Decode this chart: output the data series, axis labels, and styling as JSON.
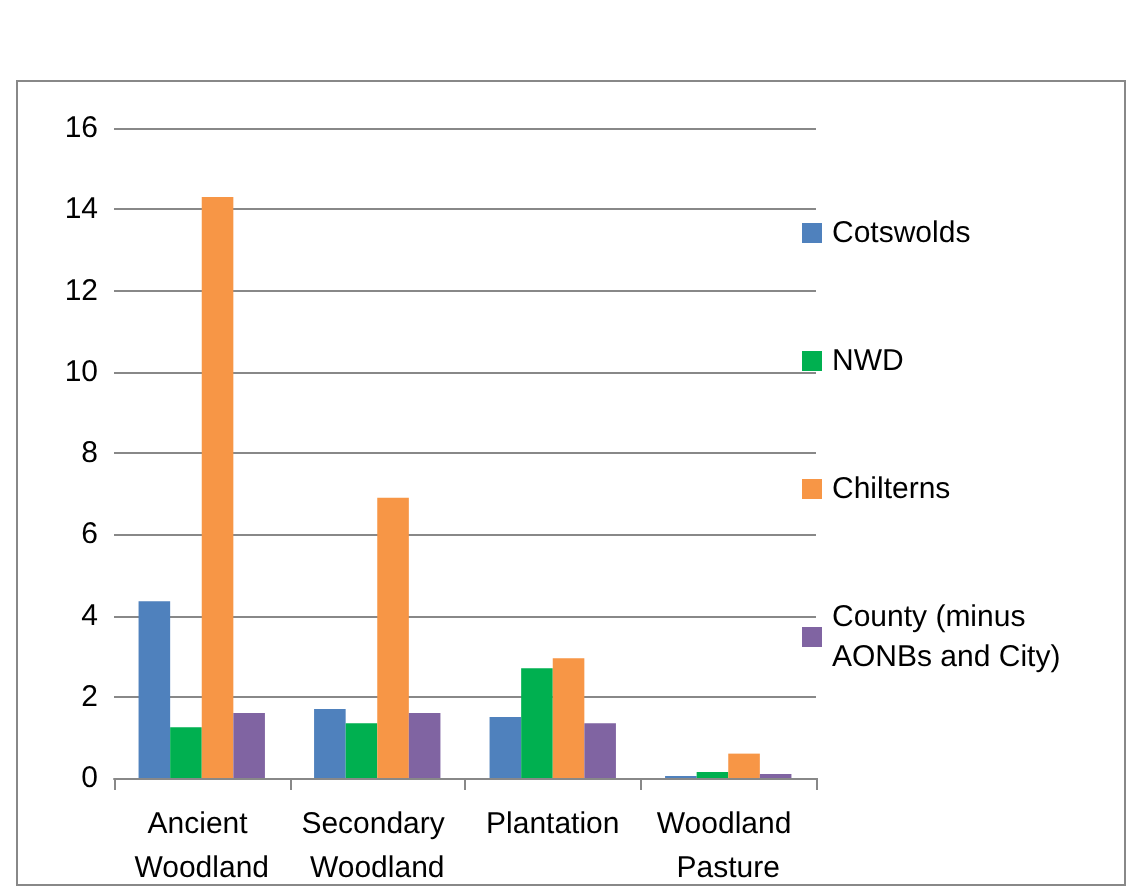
{
  "chart_data": {
    "type": "bar",
    "categories": [
      "Ancient Woodland",
      "Secondary Woodland",
      "Plantation",
      "Woodland Pasture"
    ],
    "series": [
      {
        "name": "Cotswolds",
        "color": "#4f81bd",
        "values": [
          4.35,
          1.7,
          1.5,
          0.05
        ]
      },
      {
        "name": "NWD",
        "color": "#00b050",
        "values": [
          1.25,
          1.35,
          2.7,
          0.15
        ]
      },
      {
        "name": "Chilterns",
        "color": "#f79646",
        "values": [
          14.3,
          6.9,
          2.95,
          0.6
        ]
      },
      {
        "name": "County (minus AONBs and City)",
        "color": "#8064a2",
        "values": [
          1.6,
          1.6,
          1.35,
          0.1
        ]
      }
    ],
    "ylim": [
      0,
      16
    ],
    "yticks": [
      0,
      2,
      4,
      6,
      8,
      10,
      12,
      14,
      16
    ],
    "grid": "y",
    "legend": "right"
  }
}
